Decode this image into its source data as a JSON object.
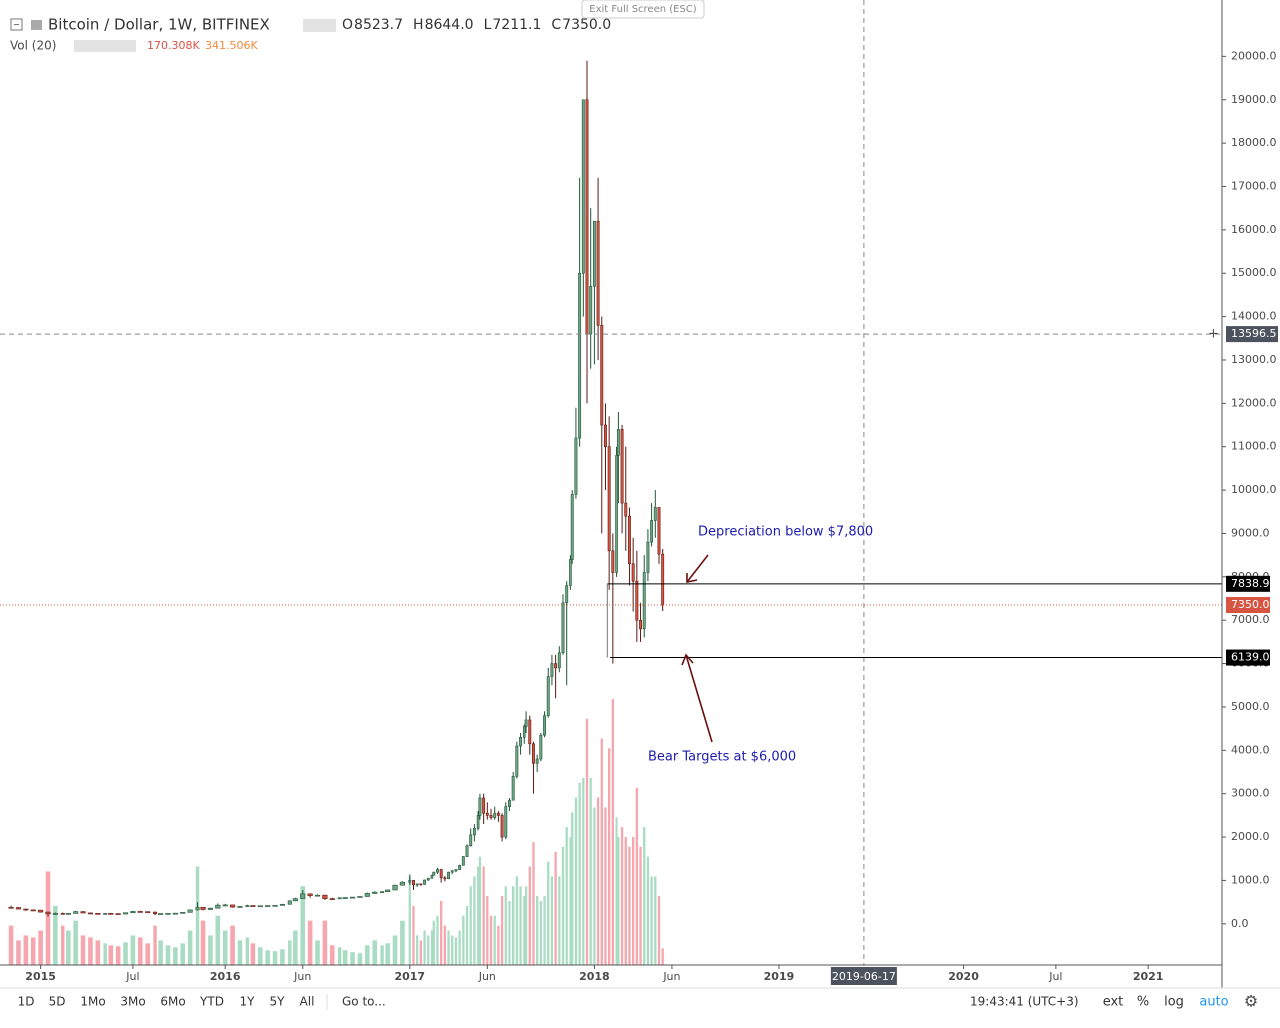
{
  "header": {
    "title": "Bitcoin / Dollar, 1W, BITFINEX",
    "ohlc": [
      {
        "key": "O",
        "text": "8523.7"
      },
      {
        "key": "H",
        "text": "8644.0"
      },
      {
        "key": "L",
        "text": "7211.1"
      },
      {
        "key": "C",
        "text": "7350.0"
      }
    ],
    "vol_label": "Vol (20)",
    "vol_values": [
      "170.308K",
      "341.506K"
    ],
    "exit": "Exit Full Screen (ESC)"
  },
  "chart_data": {
    "type": "candlestick",
    "xlim": [
      2014.78,
      2021.4
    ],
    "ylim": [
      -950,
      21300
    ],
    "y2lim": [
      0,
      3300
    ],
    "xticks": [
      2015,
      {
        "value": 2015.5,
        "label": "Jul"
      },
      2016,
      {
        "value": 2016.42,
        "label": "Jun"
      },
      2017,
      {
        "value": 2017.42,
        "label": "Jun"
      },
      2018,
      {
        "value": 2018.42,
        "label": "Jun"
      },
      2019,
      2020,
      {
        "value": 2020.5,
        "label": "Jul"
      },
      2021
    ],
    "yticks": [
      {
        "value": 0,
        "label": "0.0"
      },
      {
        "value": 1000,
        "label": "1000.0"
      },
      {
        "value": 2000,
        "label": "2000.0"
      },
      {
        "value": 3000,
        "label": "3000.0"
      },
      {
        "value": 4000,
        "label": "4000.0"
      },
      {
        "value": 5000,
        "label": "5000.0"
      },
      {
        "value": 6000,
        "label": "6000.0"
      },
      {
        "value": 7000,
        "label": "7000.0"
      },
      {
        "value": 8000,
        "label": "8000.0"
      },
      {
        "value": 9000,
        "label": "9000.0"
      },
      {
        "value": 10000,
        "label": "10000.0"
      },
      {
        "value": 11000,
        "label": "11000.0"
      },
      {
        "value": 12000,
        "label": "12000.0"
      },
      {
        "value": 13000,
        "label": "13000.0"
      },
      {
        "value": 14000,
        "label": "14000.0"
      },
      {
        "value": 15000,
        "label": "15000.0"
      },
      {
        "value": 16000,
        "label": "16000.0"
      },
      {
        "value": 17000,
        "label": "17000.0"
      },
      {
        "value": 18000,
        "label": "18000.0"
      },
      {
        "value": 19000,
        "label": "19000.0"
      },
      {
        "value": 20000,
        "label": "20000.0"
      }
    ],
    "grid": true,
    "up_color": "#6ba583",
    "down_color": "#d75442",
    "vol_up_color": "#a9dcc3",
    "vol_down_color": "#f5a6ae",
    "candles": [
      [
        2014.84,
        380,
        420,
        360,
        375
      ],
      [
        2014.88,
        375,
        385,
        330,
        340
      ],
      [
        2014.92,
        340,
        350,
        300,
        320
      ],
      [
        2014.96,
        320,
        330,
        290,
        315
      ],
      [
        2015.0,
        315,
        320,
        260,
        270
      ],
      [
        2015.04,
        270,
        280,
        170,
        230
      ],
      [
        2015.08,
        230,
        260,
        210,
        240
      ],
      [
        2015.12,
        240,
        260,
        220,
        230
      ],
      [
        2015.15,
        230,
        250,
        215,
        240
      ],
      [
        2015.19,
        240,
        300,
        235,
        280
      ],
      [
        2015.23,
        280,
        290,
        240,
        250
      ],
      [
        2015.27,
        250,
        260,
        220,
        240
      ],
      [
        2015.31,
        240,
        250,
        220,
        235
      ],
      [
        2015.35,
        235,
        245,
        225,
        240
      ],
      [
        2015.38,
        240,
        250,
        230,
        235
      ],
      [
        2015.42,
        235,
        240,
        220,
        225
      ],
      [
        2015.46,
        225,
        260,
        220,
        255
      ],
      [
        2015.5,
        255,
        300,
        250,
        285
      ],
      [
        2015.54,
        285,
        300,
        270,
        280
      ],
      [
        2015.58,
        280,
        285,
        260,
        270
      ],
      [
        2015.62,
        270,
        280,
        200,
        230
      ],
      [
        2015.65,
        230,
        240,
        220,
        235
      ],
      [
        2015.69,
        235,
        245,
        225,
        240
      ],
      [
        2015.73,
        240,
        250,
        235,
        245
      ],
      [
        2015.77,
        245,
        270,
        240,
        265
      ],
      [
        2015.81,
        265,
        330,
        260,
        320
      ],
      [
        2015.85,
        320,
        500,
        310,
        380
      ],
      [
        2015.88,
        380,
        390,
        310,
        330
      ],
      [
        2015.92,
        330,
        370,
        320,
        360
      ],
      [
        2015.96,
        360,
        470,
        355,
        430
      ],
      [
        2016.0,
        430,
        460,
        400,
        435
      ],
      [
        2016.04,
        435,
        440,
        370,
        385
      ],
      [
        2016.08,
        385,
        410,
        370,
        400
      ],
      [
        2016.12,
        400,
        440,
        390,
        420
      ],
      [
        2016.15,
        420,
        430,
        400,
        410
      ],
      [
        2016.19,
        410,
        420,
        400,
        415
      ],
      [
        2016.23,
        415,
        425,
        405,
        420
      ],
      [
        2016.27,
        420,
        430,
        410,
        425
      ],
      [
        2016.31,
        425,
        460,
        420,
        450
      ],
      [
        2016.35,
        450,
        540,
        445,
        530
      ],
      [
        2016.38,
        530,
        600,
        520,
        580
      ],
      [
        2016.42,
        580,
        780,
        570,
        690
      ],
      [
        2016.46,
        690,
        700,
        600,
        650
      ],
      [
        2016.5,
        650,
        680,
        640,
        660
      ],
      [
        2016.54,
        660,
        670,
        550,
        580
      ],
      [
        2016.58,
        580,
        600,
        560,
        575
      ],
      [
        2016.62,
        575,
        610,
        570,
        600
      ],
      [
        2016.65,
        600,
        615,
        590,
        605
      ],
      [
        2016.69,
        605,
        620,
        600,
        615
      ],
      [
        2016.73,
        615,
        640,
        610,
        630
      ],
      [
        2016.77,
        630,
        720,
        625,
        700
      ],
      [
        2016.81,
        700,
        750,
        690,
        730
      ],
      [
        2016.85,
        730,
        750,
        720,
        740
      ],
      [
        2016.88,
        740,
        790,
        735,
        780
      ],
      [
        2016.92,
        780,
        900,
        775,
        890
      ],
      [
        2016.96,
        890,
        980,
        880,
        960
      ],
      [
        2017.0,
        960,
        1140,
        900,
        1000
      ],
      [
        2017.02,
        1000,
        1010,
        780,
        900
      ],
      [
        2017.04,
        900,
        930,
        850,
        920
      ],
      [
        2017.06,
        920,
        930,
        880,
        910
      ],
      [
        2017.08,
        910,
        1020,
        900,
        1010
      ],
      [
        2017.1,
        1010,
        1060,
        990,
        1050
      ],
      [
        2017.12,
        1050,
        1130,
        1040,
        1120
      ],
      [
        2017.13,
        1120,
        1200,
        1110,
        1190
      ],
      [
        2017.15,
        1190,
        1290,
        1150,
        1250
      ],
      [
        2017.17,
        1250,
        1270,
        950,
        1060
      ],
      [
        2017.19,
        1060,
        1100,
        980,
        1040
      ],
      [
        2017.21,
        1040,
        1200,
        1030,
        1190
      ],
      [
        2017.23,
        1190,
        1240,
        1150,
        1220
      ],
      [
        2017.25,
        1220,
        1260,
        1190,
        1250
      ],
      [
        2017.27,
        1250,
        1360,
        1240,
        1350
      ],
      [
        2017.29,
        1350,
        1560,
        1340,
        1550
      ],
      [
        2017.31,
        1550,
        1830,
        1540,
        1800
      ],
      [
        2017.33,
        1800,
        2200,
        1780,
        2050
      ],
      [
        2017.35,
        2050,
        2300,
        1900,
        2200
      ],
      [
        2017.37,
        2200,
        2600,
        2150,
        2500
      ],
      [
        2017.38,
        2500,
        3000,
        2400,
        2900
      ],
      [
        2017.4,
        2900,
        3000,
        2300,
        2550
      ],
      [
        2017.42,
        2550,
        2800,
        2400,
        2500
      ],
      [
        2017.44,
        2500,
        2650,
        2400,
        2450
      ],
      [
        2017.46,
        2450,
        2700,
        2400,
        2550
      ],
      [
        2017.48,
        2550,
        2600,
        2350,
        2500
      ],
      [
        2017.5,
        2500,
        2550,
        1900,
        2000
      ],
      [
        2017.52,
        2000,
        2800,
        1950,
        2700
      ],
      [
        2017.54,
        2700,
        2900,
        2600,
        2850
      ],
      [
        2017.56,
        2850,
        3500,
        2850,
        3400
      ],
      [
        2017.58,
        3400,
        4200,
        3350,
        4100
      ],
      [
        2017.6,
        4100,
        4400,
        3900,
        4300
      ],
      [
        2017.62,
        4300,
        4600,
        4150,
        4550
      ],
      [
        2017.63,
        4550,
        4900,
        4400,
        4700
      ],
      [
        2017.65,
        4700,
        4800,
        3900,
        4150
      ],
      [
        2017.67,
        4150,
        4200,
        3000,
        3700
      ],
      [
        2017.69,
        3700,
        3900,
        3500,
        3800
      ],
      [
        2017.71,
        3800,
        4400,
        3750,
        4350
      ],
      [
        2017.73,
        4350,
        4900,
        4300,
        4800
      ],
      [
        2017.75,
        4800,
        5900,
        4750,
        5700
      ],
      [
        2017.77,
        5700,
        6200,
        5500,
        6000
      ],
      [
        2017.79,
        6000,
        6200,
        5200,
        5900
      ],
      [
        2017.81,
        5900,
        6400,
        5800,
        6250
      ],
      [
        2017.83,
        6250,
        7600,
        6200,
        7400
      ],
      [
        2017.85,
        7400,
        7900,
        5500,
        7800
      ],
      [
        2017.87,
        7800,
        8500,
        7700,
        8400
      ],
      [
        2017.88,
        8400,
        10000,
        8300,
        9900
      ],
      [
        2017.9,
        9900,
        11900,
        9800,
        11200
      ],
      [
        2017.92,
        11200,
        17200,
        11000,
        15000
      ],
      [
        2017.94,
        15000,
        19000,
        14000,
        19000
      ],
      [
        2017.96,
        19000,
        19900,
        12000,
        13600
      ],
      [
        2017.98,
        13600,
        16500,
        12800,
        14700
      ],
      [
        2018.0,
        14700,
        16200,
        12900,
        16200
      ],
      [
        2018.02,
        16200,
        17200,
        13000,
        13800
      ],
      [
        2018.04,
        13800,
        14000,
        9000,
        11500
      ],
      [
        2018.06,
        11500,
        12000,
        10000,
        11000
      ],
      [
        2018.08,
        11000,
        11700,
        7700,
        8600
      ],
      [
        2018.1,
        8600,
        9000,
        6000,
        8100
      ],
      [
        2018.12,
        8100,
        11000,
        8000,
        10800
      ],
      [
        2018.13,
        10800,
        11800,
        9700,
        11400
      ],
      [
        2018.15,
        11400,
        11500,
        9000,
        9700
      ],
      [
        2018.17,
        9700,
        11000,
        8600,
        9400
      ],
      [
        2018.19,
        9400,
        9600,
        7800,
        8300
      ],
      [
        2018.21,
        8300,
        8900,
        7200,
        7900
      ],
      [
        2018.23,
        7900,
        8600,
        6500,
        7000
      ],
      [
        2018.25,
        7000,
        7400,
        6500,
        6800
      ],
      [
        2018.27,
        6800,
        8500,
        6600,
        8100
      ],
      [
        2018.29,
        8100,
        9100,
        7900,
        8800
      ],
      [
        2018.31,
        8800,
        9700,
        8700,
        9300
      ],
      [
        2018.33,
        9300,
        10000,
        8900,
        9600
      ],
      [
        2018.35,
        9600,
        9600,
        8300,
        8523.7
      ],
      [
        2018.37,
        8523.7,
        8644.0,
        7211.1,
        7350.0
      ]
    ],
    "volume": [
      400,
      250,
      300,
      280,
      350,
      950,
      600,
      400,
      350,
      450,
      300,
      280,
      250,
      220,
      200,
      190,
      230,
      300,
      280,
      220,
      400,
      250,
      200,
      180,
      220,
      350,
      1000,
      450,
      300,
      500,
      350,
      400,
      250,
      280,
      220,
      180,
      150,
      140,
      160,
      250,
      350,
      800,
      450,
      250,
      450,
      200,
      180,
      150,
      130,
      120,
      200,
      250,
      200,
      220,
      300,
      450,
      900,
      600,
      300,
      250,
      350,
      300,
      350,
      450,
      500,
      650,
      400,
      350,
      300,
      280,
      350,
      500,
      600,
      800,
      900,
      1000,
      1100,
      1000,
      700,
      500,
      500,
      400,
      700,
      800,
      650,
      800,
      900,
      800,
      700,
      800,
      1000,
      1250,
      700,
      650,
      700,
      1050,
      900,
      1150,
      900,
      1200,
      1400,
      1300,
      1550,
      1700,
      1850,
      1900,
      2500,
      1900,
      1600,
      1700,
      2300,
      1600,
      2200,
      2700,
      1500,
      1300,
      1400,
      1300,
      1200,
      1300,
      1800,
      1200,
      1400,
      1100,
      900,
      900,
      700,
      170.308
    ],
    "price_labels": [
      {
        "value": 7838.9,
        "label": "7838.9",
        "x": 2018.07
      },
      {
        "value": 6139.0,
        "label": "6139.0",
        "x": 2018.085
      }
    ],
    "last_price": {
      "value": 7350.0,
      "label": "7350.0"
    },
    "crosshair": {
      "x": {
        "value": 2019.46,
        "label": "2019-06-17"
      },
      "y": {
        "value": 13596.5,
        "label": "13596.5"
      }
    },
    "annotations": [
      "Depreciation below $7,800",
      "Bear Targets at $6,000"
    ]
  },
  "toolbar": {
    "ranges": [
      "1D",
      "5D",
      "1Mo",
      "3Mo",
      "6Mo",
      "YTD",
      "1Y",
      "5Y",
      "All"
    ],
    "goto": "Go to...",
    "clock": "19:43:41 (UTC+3)",
    "options": [
      "ext",
      "%",
      "log",
      "auto"
    ]
  }
}
